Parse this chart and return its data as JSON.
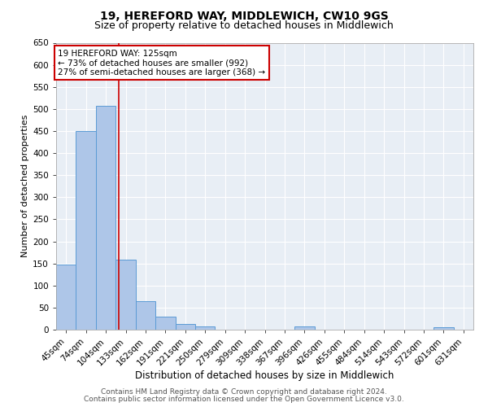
{
  "title1": "19, HEREFORD WAY, MIDDLEWICH, CW10 9GS",
  "title2": "Size of property relative to detached houses in Middlewich",
  "xlabel": "Distribution of detached houses by size in Middlewich",
  "ylabel": "Number of detached properties",
  "categories": [
    "45sqm",
    "74sqm",
    "104sqm",
    "133sqm",
    "162sqm",
    "191sqm",
    "221sqm",
    "250sqm",
    "279sqm",
    "309sqm",
    "338sqm",
    "367sqm",
    "396sqm",
    "426sqm",
    "455sqm",
    "484sqm",
    "514sqm",
    "543sqm",
    "572sqm",
    "601sqm",
    "631sqm"
  ],
  "values": [
    148,
    450,
    507,
    158,
    65,
    30,
    13,
    7,
    0,
    0,
    0,
    0,
    7,
    0,
    0,
    0,
    0,
    0,
    0,
    5,
    0
  ],
  "bar_color": "#aec6e8",
  "bar_edge_color": "#5b9bd5",
  "vline_x": 2.65,
  "vline_color": "#cc0000",
  "annotation_box_text": "19 HEREFORD WAY: 125sqm\n← 73% of detached houses are smaller (992)\n27% of semi-detached houses are larger (368) →",
  "annotation_box_color": "#ffffff",
  "annotation_box_edgecolor": "#cc0000",
  "ylim": [
    0,
    650
  ],
  "yticks": [
    0,
    50,
    100,
    150,
    200,
    250,
    300,
    350,
    400,
    450,
    500,
    550,
    600,
    650
  ],
  "bg_color": "#e8eef5",
  "footer1": "Contains HM Land Registry data © Crown copyright and database right 2024.",
  "footer2": "Contains public sector information licensed under the Open Government Licence v3.0.",
  "title1_fontsize": 10,
  "title2_fontsize": 9,
  "xlabel_fontsize": 8.5,
  "ylabel_fontsize": 8,
  "tick_fontsize": 7.5,
  "annotation_fontsize": 7.5,
  "footer_fontsize": 6.5
}
